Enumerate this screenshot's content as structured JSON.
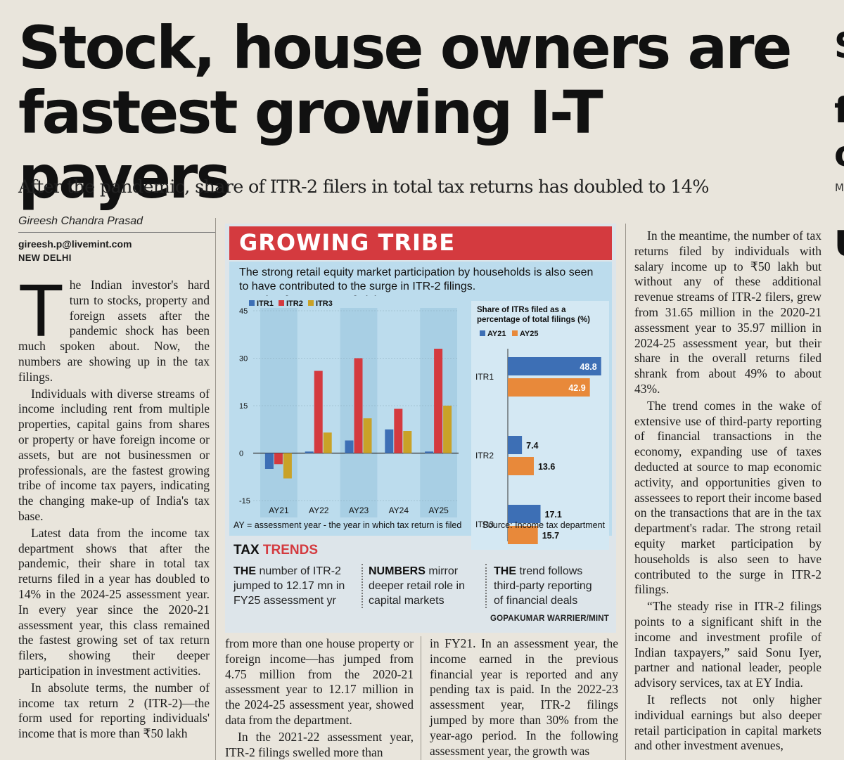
{
  "article": {
    "headline_line1": "Stock, house owners are",
    "headline_line2": "fastest growing I-T payers",
    "subhead": "After the pandemic, share of ITR-2 filers in total tax returns has doubled to 14%",
    "author": "Gireesh Chandra Prasad",
    "email": "gireesh.p@livemint.com",
    "dateline": "NEW DELHI",
    "dropcap": "T",
    "col1": [
      "he Indian investor's hard turn to stocks, property and foreign assets after the pandemic shock has been much spoken about. Now, the numbers are showing up in the tax filings.",
      "Individuals with diverse streams of income including rent from multiple properties, capital gains from shares or property or have foreign income or assets, but are not businessmen or professionals, are the fastest growing tribe of income tax payers, indicating the changing make-up of India's tax base.",
      "Latest data from the income tax department shows that after the pandemic, their share in total tax returns filed in a year has doubled to 14% in the 2024-25 assessment year. In every year since the 2020-21 assessment year, this class remained the fastest growing set of tax return filers, showing their deeper participation in investment activities.",
      "In absolute terms, the number of income tax return 2 (ITR-2)—the form used for reporting individuals' income that is more than ₹50 lakh"
    ],
    "col2": [
      "from more than one house property or foreign income—has jumped from 4.75 million from the 2020-21 assessment year to 12.17 million in the 2024-25 assessment year, showed data from the department.",
      "In the 2021-22 assessment year, ITR-2 filings swelled more than"
    ],
    "col3": [
      "in FY21. In an assessment year, the income earned in the previous financial year is reported and any pending tax is paid. In the 2022-23 assessment year, ITR-2 filings jumped by more than 30% from the year-ago period. In the following assessment year, the growth was"
    ],
    "col4": [
      "In the meantime, the number of tax returns filed by individuals with salary income up to ₹50 lakh but without any of these additional revenue streams of ITR-2 filers, grew from 31.65 million in the 2020-21 assessment year to 35.97 million in 2024-25 assessment year, but their share in the overall returns filed shrank from about 49% to about 43%.",
      "The trend comes in the wake of extensive use of third-party reporting of financial transactions in the economy, expanding use of taxes deducted at source to map economic activity, and opportunities given to assessees to report their income based on the transactions that are in the tax department's radar. The strong retail equity market participation by households is also seen to have contributed to the surge in ITR-2 filings.",
      "“The steady rise in ITR-2 filings points to a significant shift in the income and investment profile of Indian taxpayers,” said Sonu Iyer, partner and national leader, people advisory services, tax at EY India.",
      "It reflects not only higher individual earnings but also deeper retail participation in capital markets and other investment avenues,"
    ]
  },
  "graphic": {
    "banner": "GROWING TRIBE",
    "deck": "The strong retail equity market participation by households is also seen to have contributed to the surge in ITR-2 filings.",
    "brand": "mint",
    "note": "AY = assessment year - the year in which tax return is filed",
    "source": "Source: Income tax department",
    "trends_title_a": "TAX",
    "trends_title_b": "TRENDS",
    "trends": [
      {
        "lead": "THE",
        "text": " number of ITR-2 jumped to 12.17 mn in FY25 assessment yr"
      },
      {
        "lead": "NUMBERS",
        "text": " mirror deeper retail role in capital markets"
      },
      {
        "lead": "THE",
        "text": " trend follows third-party reporting of financial deals"
      }
    ],
    "credit": "GOPAKUMAR WARRIER/MINT",
    "colors": {
      "ITR1": "#3d6fb5",
      "ITR2": "#d43a3f",
      "ITR3": "#c9a227",
      "AY21": "#3d6fb5",
      "AY25": "#e8893a"
    }
  },
  "chart_data": [
    {
      "type": "bar",
      "title": "Year-on-year growth in ITR filings (%)",
      "categories": [
        "AY21",
        "AY22",
        "AY23",
        "AY24",
        "AY25"
      ],
      "series": [
        {
          "name": "ITR1",
          "values": [
            -5,
            0.5,
            4,
            7.5,
            0.5
          ]
        },
        {
          "name": "ITR2",
          "values": [
            -3.5,
            26,
            30,
            14,
            33
          ]
        },
        {
          "name": "ITR3",
          "values": [
            -8,
            6.5,
            11,
            7,
            15
          ]
        }
      ],
      "yticks": [
        45,
        30,
        15,
        0,
        -15
      ],
      "ylim": [
        -15,
        45
      ],
      "legend": "top-left"
    },
    {
      "type": "bar",
      "orientation": "horizontal",
      "title": "Share of ITRs filed as a percentage of total filings (%)",
      "categories": [
        "ITR1",
        "ITR2",
        "ITR3"
      ],
      "series": [
        {
          "name": "AY21",
          "values": [
            48.8,
            7.4,
            17.1
          ]
        },
        {
          "name": "AY25",
          "values": [
            42.9,
            13.6,
            15.7
          ]
        }
      ],
      "legend": "top-left"
    }
  ]
}
